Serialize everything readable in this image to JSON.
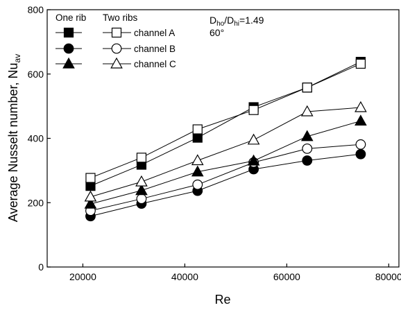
{
  "chart_data": {
    "type": "line",
    "xlabel": "Re",
    "ylabel_main": "Average Nusselt number, Nu",
    "ylabel_sub": "av",
    "xlim": [
      13000,
      82000
    ],
    "ylim": [
      0,
      800
    ],
    "xticks": [
      20000,
      40000,
      60000,
      80000
    ],
    "yticks": [
      0,
      200,
      400,
      600,
      800
    ],
    "x": [
      21500,
      31500,
      42500,
      53500,
      64000,
      74500
    ],
    "legend_headers": {
      "one_rib": "One rib",
      "two_ribs": "Two ribs"
    },
    "annotation": {
      "ratio_a": "D",
      "ratio_a_sub": "ho",
      "ratio_sep": "/D",
      "ratio_b_sub": "hi",
      "ratio_val": "=1.49",
      "angle": "60°"
    },
    "series": [
      {
        "name": "channel A",
        "group": "one",
        "marker": "square",
        "filled": true,
        "values": [
          252,
          318,
          402,
          497,
          558,
          638
        ]
      },
      {
        "name": "channel A",
        "group": "two",
        "marker": "square",
        "filled": false,
        "values": [
          277,
          340,
          428,
          488,
          558,
          632
        ]
      },
      {
        "name": "channel B",
        "group": "one",
        "marker": "circle",
        "filled": true,
        "values": [
          158,
          197,
          237,
          304,
          331,
          351
        ]
      },
      {
        "name": "channel B",
        "group": "two",
        "marker": "circle",
        "filled": false,
        "values": [
          175,
          212,
          256,
          325,
          368,
          381
        ]
      },
      {
        "name": "channel C",
        "group": "one",
        "marker": "triangle",
        "filled": true,
        "values": [
          196,
          238,
          296,
          330,
          406,
          454
        ]
      },
      {
        "name": "channel C",
        "group": "two",
        "marker": "triangle",
        "filled": false,
        "values": [
          218,
          265,
          331,
          395,
          483,
          496
        ]
      }
    ]
  }
}
